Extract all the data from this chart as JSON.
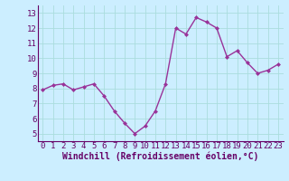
{
  "x": [
    0,
    1,
    2,
    3,
    4,
    5,
    6,
    7,
    8,
    9,
    10,
    11,
    12,
    13,
    14,
    15,
    16,
    17,
    18,
    19,
    20,
    21,
    22,
    23
  ],
  "y": [
    7.9,
    8.2,
    8.3,
    7.9,
    8.1,
    8.3,
    7.5,
    6.5,
    5.7,
    5.0,
    5.5,
    6.5,
    8.3,
    12.0,
    11.6,
    12.7,
    12.4,
    12.0,
    10.1,
    10.5,
    9.7,
    9.0,
    9.2,
    9.6
  ],
  "line_color": "#993399",
  "marker": "D",
  "marker_size": 2.0,
  "background_color": "#cceeff",
  "grid_color": "#aadddd",
  "xlabel": "Windchill (Refroidissement éolien,°C)",
  "xlabel_color": "#660066",
  "xlabel_fontsize": 7,
  "tick_color": "#660066",
  "tick_fontsize": 6.5,
  "ylim": [
    4.5,
    13.5
  ],
  "yticks": [
    5,
    6,
    7,
    8,
    9,
    10,
    11,
    12,
    13
  ],
  "xlim": [
    -0.5,
    23.5
  ],
  "xticks": [
    0,
    1,
    2,
    3,
    4,
    5,
    6,
    7,
    8,
    9,
    10,
    11,
    12,
    13,
    14,
    15,
    16,
    17,
    18,
    19,
    20,
    21,
    22,
    23
  ],
  "spine_color": "#660066",
  "linewidth": 1.0
}
